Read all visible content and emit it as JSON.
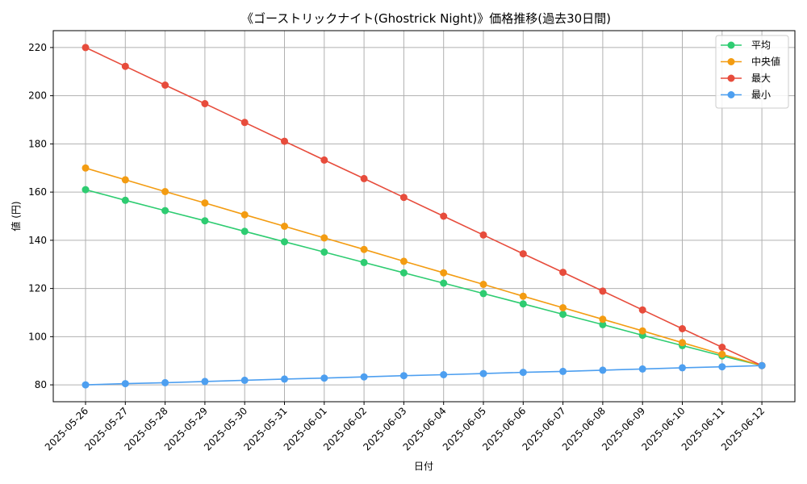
{
  "chart_data": {
    "type": "line",
    "title": "《ゴーストリックナイト(Ghostrick Night)》価格推移(過去30日間)",
    "xlabel": "日付",
    "ylabel": "値 (円)",
    "categories": [
      "2025-05-26",
      "2025-05-27",
      "2025-05-28",
      "2025-05-29",
      "2025-05-30",
      "2025-05-31",
      "2025-06-01",
      "2025-06-02",
      "2025-06-03",
      "2025-06-04",
      "2025-06-05",
      "2025-06-06",
      "2025-06-07",
      "2025-06-08",
      "2025-06-09",
      "2025-06-10",
      "2025-06-11",
      "2025-06-12"
    ],
    "ylim": [
      73,
      227
    ],
    "yticks": [
      80,
      100,
      120,
      140,
      160,
      180,
      200,
      220
    ],
    "grid": true,
    "legend_position": "top-right",
    "series": [
      {
        "name": "平均",
        "color": "#2ecc71",
        "values": [
          161,
          156.6,
          152.3,
          148.1,
          143.7,
          139.4,
          135.1,
          130.8,
          126.5,
          122.2,
          117.9,
          113.6,
          109.3,
          105,
          100.6,
          96.3,
          92,
          88
        ]
      },
      {
        "name": "中央値",
        "color": "#f39c12",
        "values": [
          170,
          165.1,
          160.2,
          155.5,
          150.6,
          145.8,
          141,
          136.2,
          131.3,
          126.5,
          121.7,
          116.8,
          112,
          107.2,
          102.4,
          97.5,
          92.7,
          88
        ]
      },
      {
        "name": "最大",
        "color": "#e74c3c",
        "values": [
          220,
          212.2,
          204.4,
          196.7,
          188.9,
          181.1,
          173.3,
          165.6,
          157.8,
          150,
          142.2,
          134.4,
          126.7,
          118.9,
          111.1,
          103.3,
          95.6,
          88
        ]
      },
      {
        "name": "最小",
        "color": "#4d9ff0",
        "values": [
          80,
          80.5,
          80.9,
          81.4,
          81.9,
          82.4,
          82.8,
          83.3,
          83.8,
          84.2,
          84.7,
          85.2,
          85.6,
          86.1,
          86.6,
          87.1,
          87.5,
          88
        ]
      }
    ]
  }
}
